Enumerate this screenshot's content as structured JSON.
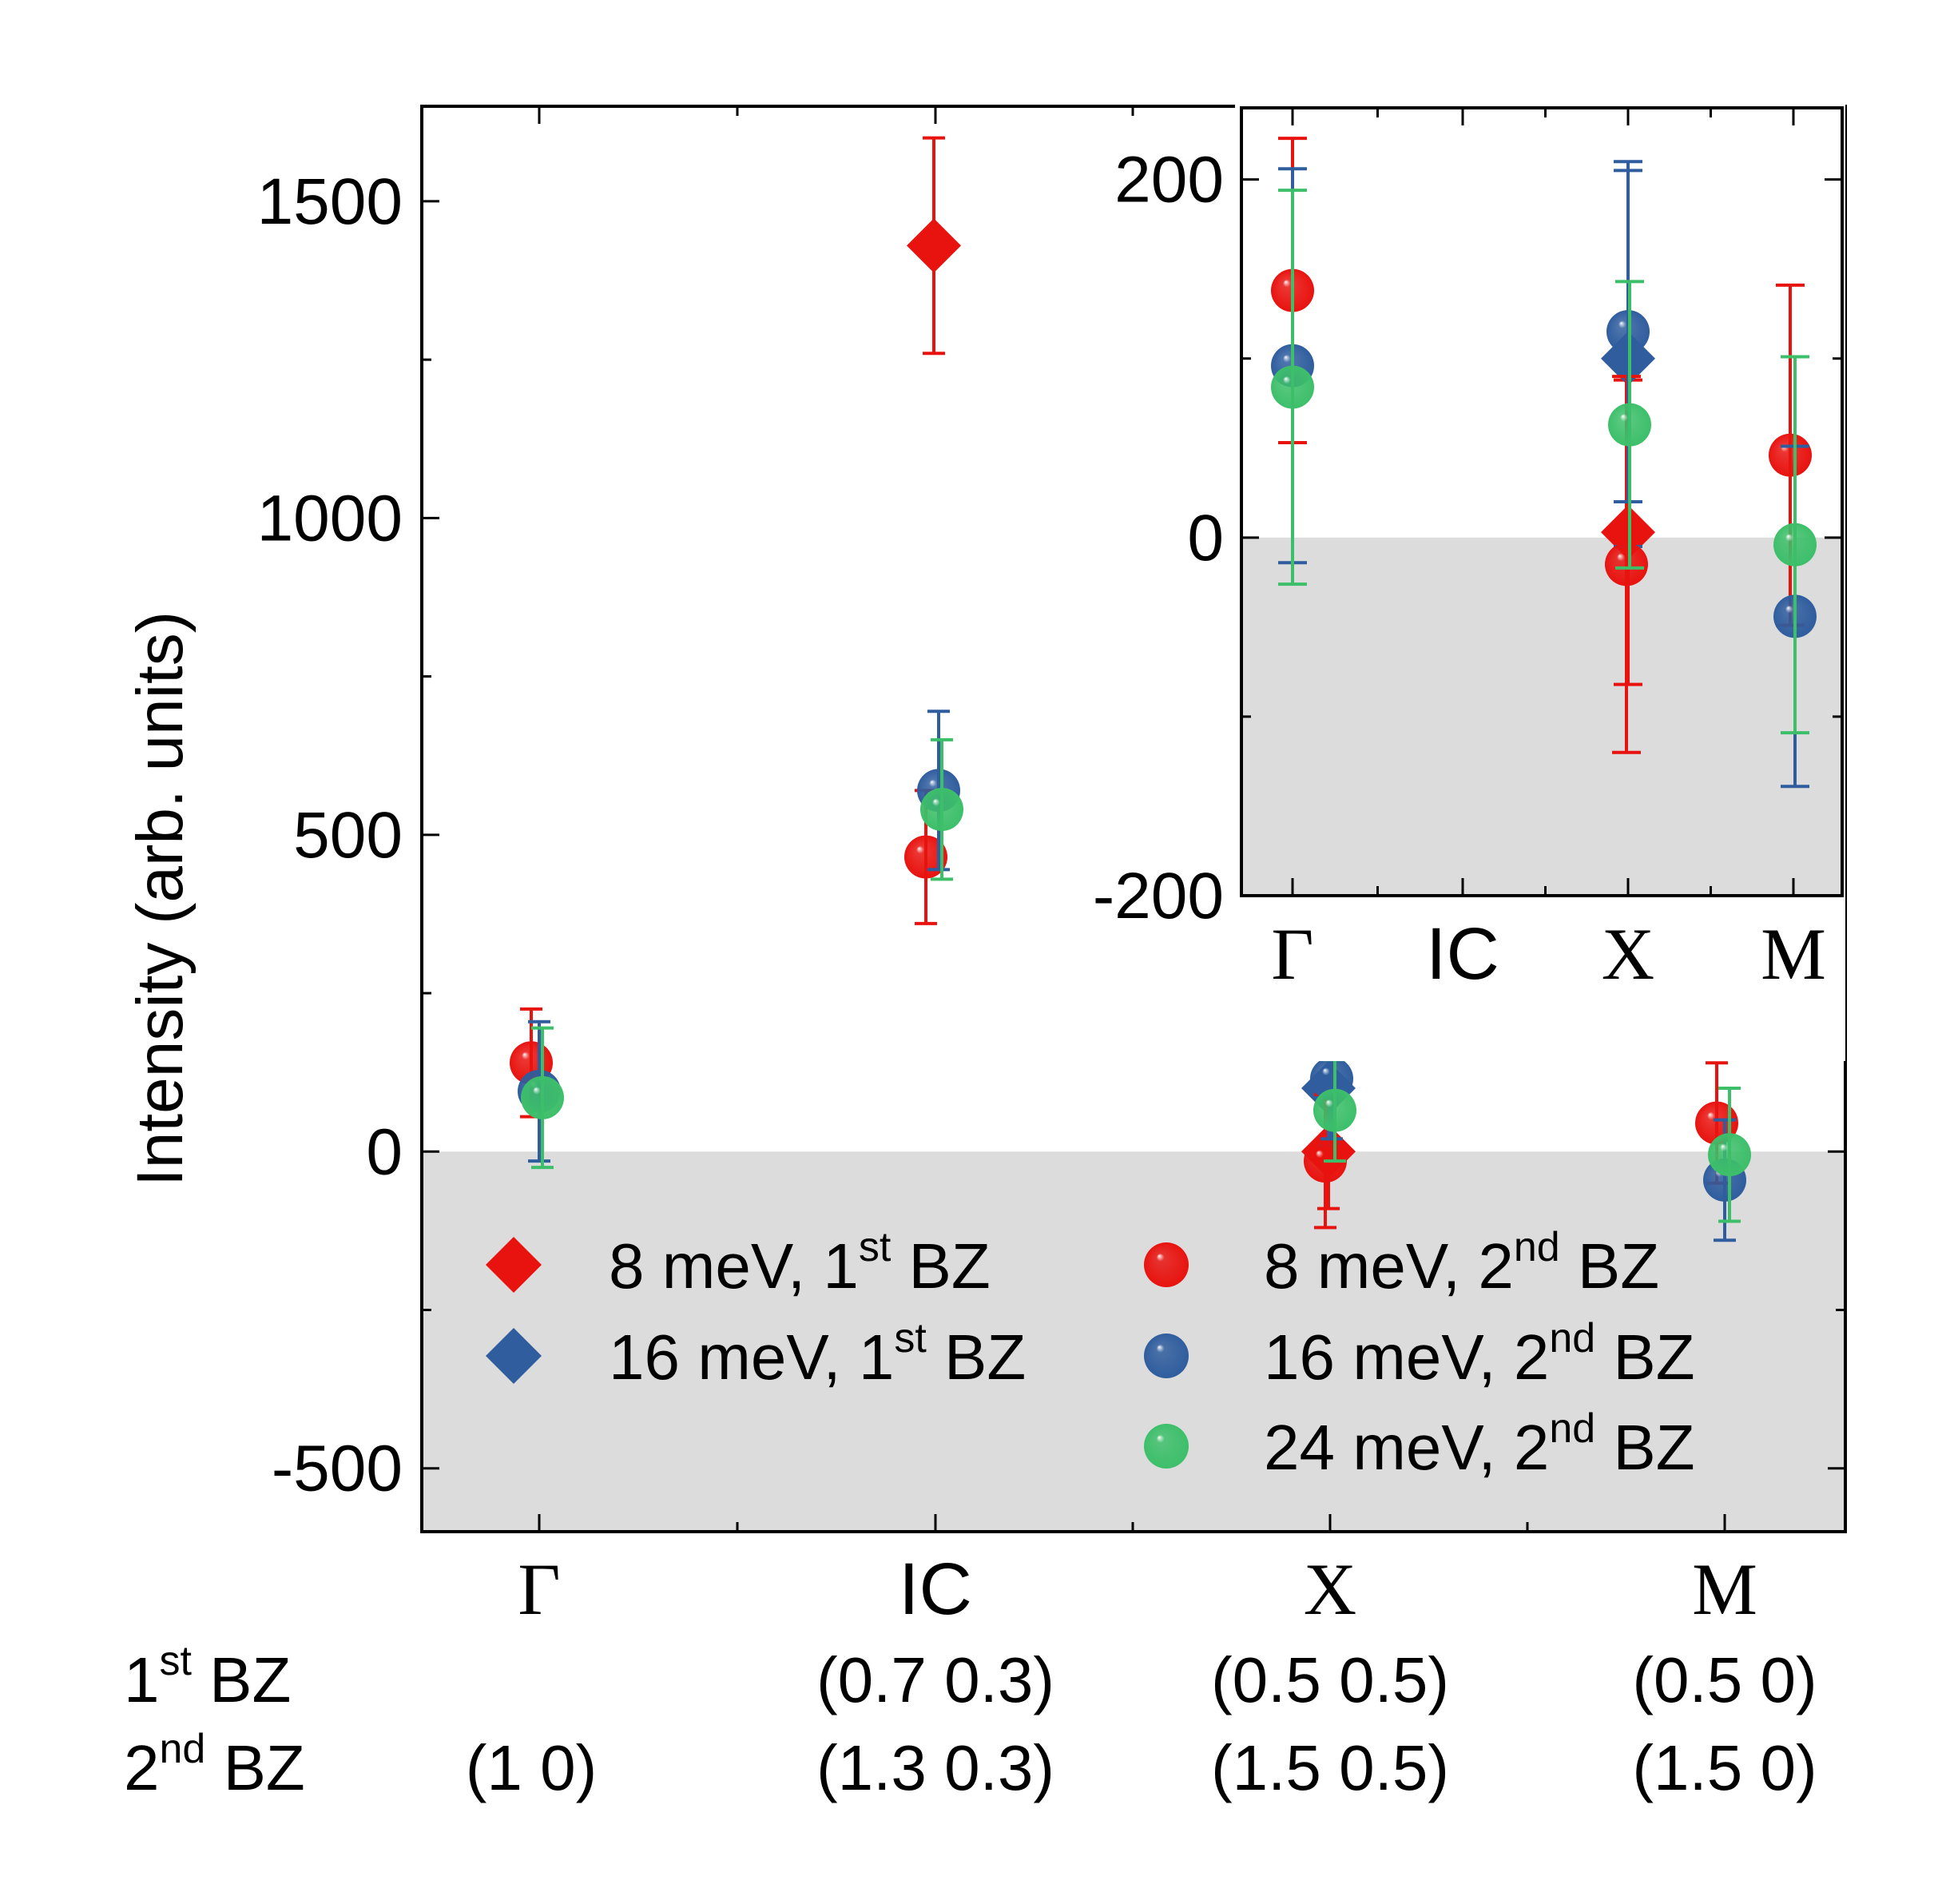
{
  "colors": {
    "red": "#e8130f",
    "blue": "#2f5d9e",
    "green": "#3dbf6a",
    "shade": "#dcdcdc"
  },
  "row_labels": {
    "bz1": {
      "sup": "st",
      "text": "BZ",
      "prefix": "1"
    },
    "bz2": {
      "sup": "nd",
      "text": "BZ",
      "prefix": "2"
    }
  },
  "coords": {
    "gamma": {
      "bz1": "",
      "bz2": "(1 0)"
    },
    "ic": {
      "bz1": "(0.7 0.3)",
      "bz2": "(1.3 0.3)"
    },
    "x": {
      "bz1": "(0.5 0.5)",
      "bz2": "(1.5 0.5)"
    },
    "m": {
      "bz1": "(0.5 0)",
      "bz2": "(1.5 0)"
    }
  },
  "chart_data": [
    {
      "id": "main",
      "type": "scatter",
      "ylabel": "Intensity (arb. units)",
      "ylim": [
        -600,
        1650
      ],
      "yticks": [
        -500,
        0,
        500,
        1000,
        1500
      ],
      "ytick_labels": [
        "-500",
        "0",
        "500",
        "1000",
        "1500"
      ],
      "categories": [
        "Γ",
        "IC",
        "X",
        "M"
      ],
      "shaded_below": 0,
      "series": [
        {
          "name": "8 meV, 1st BZ",
          "legend_main": "8 meV, 1",
          "legend_sup": "st",
          "legend_tail": " BZ",
          "marker": "diamond",
          "color": "red",
          "points": [
            {
              "cat": 1,
              "y": 1430,
              "err": 170
            },
            {
              "cat": 2,
              "y": 0,
              "err": 90
            }
          ]
        },
        {
          "name": "16 meV, 1st BZ",
          "legend_main": "16 meV, 1",
          "legend_sup": "st",
          "legend_tail": " BZ",
          "marker": "diamond",
          "color": "blue",
          "points": [
            {
              "cat": 2,
              "y": 100,
              "err": 90
            }
          ]
        },
        {
          "name": "8 meV, 2nd BZ",
          "legend_main": "8 meV, 2",
          "legend_sup": "nd",
          "legend_tail": " BZ",
          "marker": "sphere",
          "color": "red",
          "points": [
            {
              "cat": 0,
              "y": 140,
              "err": 85
            },
            {
              "cat": 1,
              "y": 465,
              "err": 105
            },
            {
              "cat": 2,
              "y": -15,
              "err": 105
            },
            {
              "cat": 3,
              "y": 45,
              "err": 95
            }
          ]
        },
        {
          "name": "16 meV, 2nd BZ",
          "legend_main": "16 meV, 2",
          "legend_sup": "nd",
          "legend_tail": " BZ",
          "marker": "sphere",
          "color": "blue",
          "points": [
            {
              "cat": 0,
              "y": 95,
              "err": 110
            },
            {
              "cat": 1,
              "y": 570,
              "err": 125
            },
            {
              "cat": 2,
              "y": 115,
              "err": 95
            },
            {
              "cat": 3,
              "y": -45,
              "err": 95
            }
          ]
        },
        {
          "name": "24 meV, 2nd BZ",
          "legend_main": "24 meV, 2",
          "legend_sup": "nd",
          "legend_tail": " BZ",
          "marker": "sphere",
          "color": "green",
          "points": [
            {
              "cat": 0,
              "y": 85,
              "err": 110
            },
            {
              "cat": 1,
              "y": 540,
              "err": 110
            },
            {
              "cat": 2,
              "y": 65,
              "err": 80
            },
            {
              "cat": 3,
              "y": -5,
              "err": 105
            }
          ]
        }
      ]
    },
    {
      "id": "inset",
      "type": "scatter",
      "ylim": [
        -200,
        240
      ],
      "yticks": [
        -200,
        0,
        200
      ],
      "ytick_labels": [
        "-200",
        "0",
        "200"
      ],
      "categories": [
        "Γ",
        "IC",
        "X",
        "M"
      ],
      "category_font": [
        "serif",
        "sans",
        "serif",
        "serif"
      ],
      "shaded_below": 0,
      "series": [
        {
          "name": "8 meV, 1st BZ",
          "marker": "diamond",
          "color": "red",
          "points": [
            {
              "cat": 2,
              "y": 3,
              "err": 85
            }
          ]
        },
        {
          "name": "16 meV, 1st BZ",
          "marker": "diamond",
          "color": "blue",
          "points": [
            {
              "cat": 2,
              "y": 100,
              "err": 105
            }
          ]
        },
        {
          "name": "8 meV, 2nd BZ",
          "marker": "sphere",
          "color": "red",
          "points": [
            {
              "cat": 0,
              "y": 138,
              "err": 85
            },
            {
              "cat": 2,
              "y": -15,
              "err": 105
            },
            {
              "cat": 3,
              "y": 46,
              "err": 95
            }
          ]
        },
        {
          "name": "16 meV, 2nd BZ",
          "marker": "sphere",
          "color": "blue",
          "points": [
            {
              "cat": 0,
              "y": 96,
              "err": 110
            },
            {
              "cat": 2,
              "y": 115,
              "err": 95
            },
            {
              "cat": 3,
              "y": -44,
              "err": 95
            }
          ]
        },
        {
          "name": "24 meV, 2nd BZ",
          "marker": "sphere",
          "color": "green",
          "points": [
            {
              "cat": 0,
              "y": 84,
              "err": 110
            },
            {
              "cat": 2,
              "y": 63,
              "err": 80
            },
            {
              "cat": 3,
              "y": -4,
              "err": 105
            }
          ]
        }
      ]
    }
  ]
}
